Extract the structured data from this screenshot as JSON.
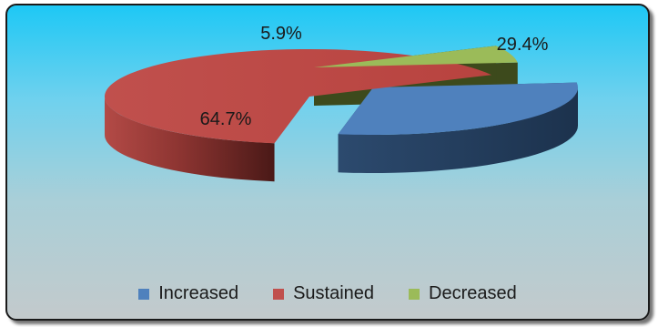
{
  "chart_data": {
    "type": "pie",
    "title": "",
    "categories": [
      "Increased",
      "Sustained",
      "Decreased"
    ],
    "values": [
      29.4,
      64.7,
      5.9
    ],
    "data_labels": [
      "29.4%",
      "64.7%",
      "5.9%"
    ],
    "colors": [
      "#4f81bd",
      "#c0504d",
      "#9bbb59"
    ],
    "exploded": true,
    "three_d": true,
    "legend_position": "bottom"
  }
}
